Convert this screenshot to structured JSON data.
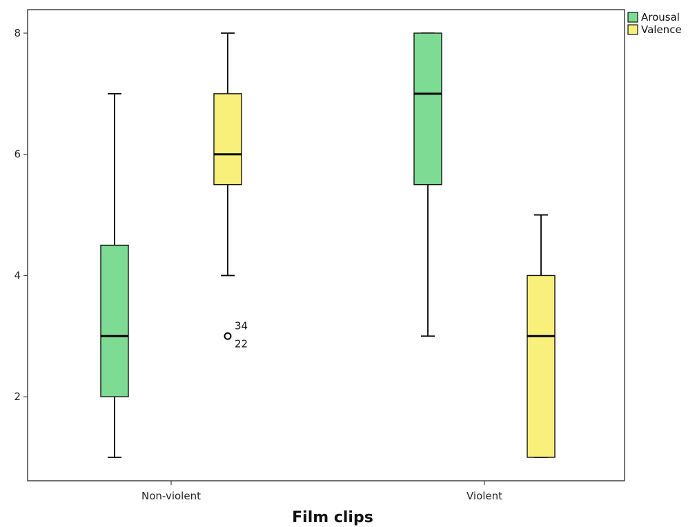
{
  "chart_data": {
    "type": "boxplot",
    "title": "",
    "xlabel": "Film clips",
    "ylabel": "",
    "ylim": [
      0.8,
      8.4
    ],
    "y_ticks": [
      2,
      4,
      6,
      8
    ],
    "categories": [
      "Non-violent",
      "Violent"
    ],
    "legend": {
      "position": "top-right",
      "entries": [
        {
          "name": "Arousal",
          "color": "#7ddb94"
        },
        {
          "name": "Valence",
          "color": "#f8f07a"
        }
      ]
    },
    "series": [
      {
        "name": "Arousal",
        "color": "#7ddb94",
        "boxes": [
          {
            "category": "Non-violent",
            "min": 1,
            "q1": 2,
            "median": 3,
            "q3": 4.5,
            "max": 7
          },
          {
            "category": "Violent",
            "min": 3,
            "q1": 5.5,
            "median": 7,
            "q3": 8,
            "max": 8
          }
        ]
      },
      {
        "name": "Valence",
        "color": "#f8f07a",
        "boxes": [
          {
            "category": "Non-violent",
            "min": 4,
            "q1": 5.5,
            "median": 6,
            "q3": 7,
            "max": 8
          },
          {
            "category": "Violent",
            "min": 1,
            "q1": 1,
            "median": 3,
            "q3": 4,
            "max": 5
          }
        ]
      }
    ],
    "outliers": [
      {
        "series": "Valence",
        "category": "Non-violent",
        "value": 3,
        "labels": [
          "34",
          "22"
        ]
      }
    ],
    "grid": false
  }
}
